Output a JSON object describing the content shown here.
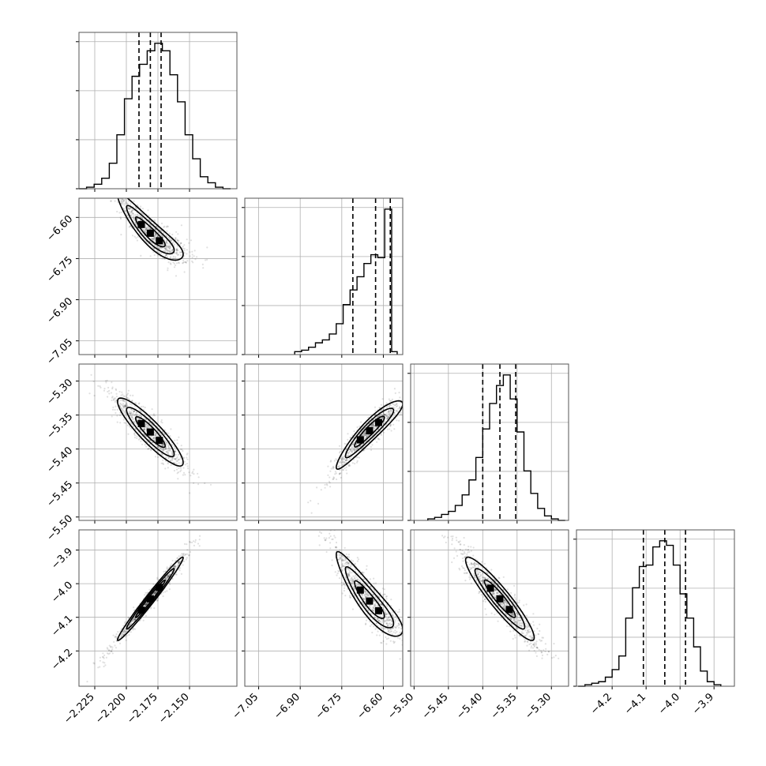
{
  "chart_data": {
    "type": "corner",
    "title": "",
    "n_params": 4,
    "parameters": [
      {
        "index": 0,
        "label": "",
        "lim": [
          -2.2375,
          -2.1125
        ],
        "ticks": [
          -2.225,
          -2.2,
          -2.175,
          -2.15
        ],
        "tick_labels": [
          "−2.225",
          "−2.200",
          "−2.175",
          "−2.150"
        ],
        "median": -2.181,
        "q16": -2.19,
        "q84": -2.1725,
        "hist_edges": [
          -2.2375,
          -2.2315,
          -2.2255,
          -2.2195,
          -2.2135,
          -2.2075,
          -2.2015,
          -2.1955,
          -2.1895,
          -2.1835,
          -2.1775,
          -2.1715,
          -2.1655,
          -2.1595,
          -2.1535,
          -2.1475,
          -2.1415,
          -2.1355,
          -2.1295,
          -2.1235,
          -2.1175
        ],
        "hist_counts": [
          0,
          0.01,
          0.03,
          0.07,
          0.17,
          0.36,
          0.6,
          0.75,
          0.83,
          0.92,
          0.97,
          0.92,
          0.76,
          0.58,
          0.36,
          0.2,
          0.08,
          0.04,
          0.01,
          0
        ]
      },
      {
        "index": 1,
        "label": "",
        "lim": [
          -7.1,
          -6.53
        ],
        "ticks": [
          -7.05,
          -6.9,
          -6.75,
          -6.6
        ],
        "tick_labels": [
          "−7.05",
          "−6.90",
          "−6.75",
          "−6.60"
        ],
        "median": -6.628,
        "q16": -6.71,
        "q84": -6.575,
        "hist_edges": [
          -6.92,
          -6.895,
          -6.87,
          -6.845,
          -6.82,
          -6.795,
          -6.77,
          -6.745,
          -6.72,
          -6.695,
          -6.67,
          -6.645,
          -6.62,
          -6.595,
          -6.57,
          -6.55
        ],
        "hist_counts": [
          0.02,
          0.03,
          0.05,
          0.08,
          0.1,
          0.14,
          0.21,
          0.34,
          0.44,
          0.53,
          0.62,
          0.68,
          0.66,
          0.99,
          0.02
        ]
      },
      {
        "index": 2,
        "label": "",
        "lim": [
          -5.505,
          -5.275
        ],
        "ticks": [
          -5.5,
          -5.45,
          -5.4,
          -5.35,
          -5.3
        ],
        "tick_labels": [
          "−5.50",
          "−5.45",
          "−5.40",
          "−5.35",
          "−5.30"
        ],
        "median": -5.375,
        "q16": -5.4,
        "q84": -5.352,
        "hist_edges": [
          -5.48,
          -5.47,
          -5.46,
          -5.45,
          -5.44,
          -5.43,
          -5.42,
          -5.41,
          -5.4,
          -5.39,
          -5.38,
          -5.37,
          -5.36,
          -5.35,
          -5.34,
          -5.33,
          -5.32,
          -5.31,
          -5.3,
          -5.29,
          -5.28
        ],
        "hist_counts": [
          0.01,
          0.02,
          0.04,
          0.06,
          0.1,
          0.17,
          0.27,
          0.42,
          0.61,
          0.78,
          0.9,
          0.97,
          0.81,
          0.59,
          0.33,
          0.18,
          0.08,
          0.03,
          0.01,
          0
        ]
      },
      {
        "index": 3,
        "label": "",
        "lim": [
          -4.305,
          -3.84
        ],
        "ticks": [
          -4.2,
          -4.1,
          -4.0,
          -3.9
        ],
        "tick_labels": [
          "−4.2",
          "−4.1",
          "−4.0",
          "−3.9"
        ],
        "median": -4.045,
        "q16": -4.108,
        "q84": -3.984,
        "hist_edges": [
          -4.3,
          -4.28,
          -4.26,
          -4.24,
          -4.22,
          -4.2,
          -4.18,
          -4.16,
          -4.14,
          -4.12,
          -4.1,
          -4.08,
          -4.06,
          -4.04,
          -4.02,
          -4.0,
          -3.98,
          -3.96,
          -3.94,
          -3.92,
          -3.9,
          -3.88
        ],
        "hist_counts": [
          0,
          0.01,
          0.02,
          0.03,
          0.06,
          0.11,
          0.2,
          0.45,
          0.65,
          0.79,
          0.8,
          0.92,
          0.96,
          0.93,
          0.8,
          0.61,
          0.45,
          0.26,
          0.1,
          0.03,
          0.01
        ]
      }
    ],
    "pairs": [
      {
        "x": 0,
        "y": 1,
        "mean": [
          -2.181,
          -6.65
        ],
        "sx": 0.013,
        "sy": 0.06,
        "rho": -0.9,
        "curve": 0.22,
        "npts": 900
      },
      {
        "x": 0,
        "y": 2,
        "mean": [
          -2.181,
          -5.375
        ],
        "sx": 0.013,
        "sy": 0.025,
        "rho": -0.9,
        "curve": 0.0,
        "npts": 900
      },
      {
        "x": 1,
        "y": 2,
        "mean": [
          -6.65,
          -5.375
        ],
        "sx": 0.06,
        "sy": 0.025,
        "rho": 0.93,
        "curve": -0.12,
        "npts": 900
      },
      {
        "x": 0,
        "y": 3,
        "mean": [
          -2.181,
          -4.045
        ],
        "sx": 0.013,
        "sy": 0.062,
        "rho": 0.985,
        "curve": 0.0,
        "npts": 900
      },
      {
        "x": 1,
        "y": 3,
        "mean": [
          -6.65,
          -4.045
        ],
        "sx": 0.06,
        "sy": 0.062,
        "rho": -0.9,
        "curve": 0.18,
        "npts": 900
      },
      {
        "x": 2,
        "y": 3,
        "mean": [
          -5.375,
          -4.045
        ],
        "sx": 0.025,
        "sy": 0.062,
        "rho": -0.93,
        "curve": 0.0,
        "npts": 900
      }
    ],
    "grid": true
  }
}
